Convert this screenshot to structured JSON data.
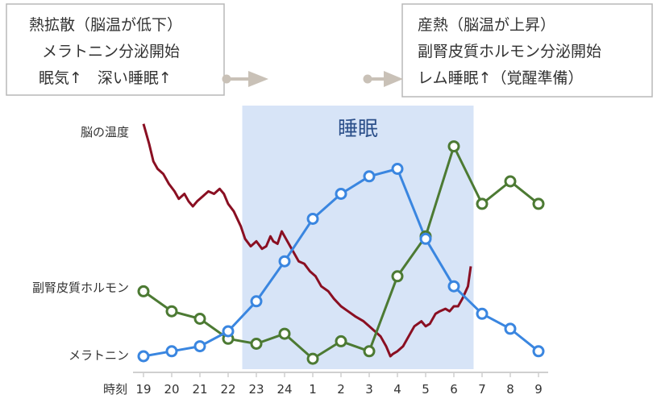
{
  "chart_data": {
    "type": "line",
    "xlabel": "時刻",
    "categories": [
      "19",
      "20",
      "21",
      "22",
      "23",
      "24",
      "1",
      "2",
      "3",
      "4",
      "5",
      "6",
      "7",
      "8",
      "9"
    ],
    "band": {
      "label": "睡眠",
      "from": "22.5",
      "to": "6.7"
    },
    "series": [
      {
        "name": "メラトニン",
        "color": "#3a86e0",
        "values": [
          0.0,
          0.02,
          0.04,
          0.1,
          0.22,
          0.38,
          0.55,
          0.65,
          0.72,
          0.75,
          0.47,
          0.28,
          0.17,
          0.11,
          0.02
        ]
      },
      {
        "name": "副腎皮質ホルモン",
        "color": "#4c7a33",
        "values": [
          0.26,
          0.18,
          0.15,
          0.07,
          0.05,
          0.09,
          -0.01,
          0.06,
          0.02,
          0.32,
          0.48,
          0.84,
          0.61,
          0.7,
          0.61
        ]
      },
      {
        "name": "脳の温度",
        "color": "#8a0f22",
        "values": [
          [
            19.0,
            0.93
          ],
          [
            19.2,
            0.85
          ],
          [
            19.35,
            0.78
          ],
          [
            19.5,
            0.75
          ],
          [
            19.7,
            0.73
          ],
          [
            19.9,
            0.69
          ],
          [
            20.1,
            0.66
          ],
          [
            20.25,
            0.63
          ],
          [
            20.45,
            0.65
          ],
          [
            20.6,
            0.62
          ],
          [
            20.75,
            0.6
          ],
          [
            20.9,
            0.62
          ],
          [
            21.1,
            0.64
          ],
          [
            21.3,
            0.66
          ],
          [
            21.5,
            0.65
          ],
          [
            21.7,
            0.67
          ],
          [
            21.85,
            0.65
          ],
          [
            22.0,
            0.61
          ],
          [
            22.2,
            0.58
          ],
          [
            22.45,
            0.52
          ],
          [
            22.6,
            0.47
          ],
          [
            22.8,
            0.44
          ],
          [
            23.0,
            0.46
          ],
          [
            23.2,
            0.43
          ],
          [
            23.35,
            0.44
          ],
          [
            23.5,
            0.48
          ],
          [
            23.6,
            0.46
          ],
          [
            23.75,
            0.45
          ],
          [
            23.9,
            0.5
          ],
          [
            24.05,
            0.47
          ],
          [
            24.2,
            0.44
          ],
          [
            24.35,
            0.41
          ],
          [
            24.5,
            0.38
          ],
          [
            24.7,
            0.37
          ],
          [
            24.9,
            0.34
          ],
          [
            25.1,
            0.32
          ],
          [
            25.3,
            0.28
          ],
          [
            25.55,
            0.26
          ],
          [
            25.75,
            0.23
          ],
          [
            26.0,
            0.2
          ],
          [
            26.25,
            0.18
          ],
          [
            26.5,
            0.16
          ],
          [
            26.8,
            0.14
          ],
          [
            27.0,
            0.12
          ],
          [
            27.2,
            0.1
          ],
          [
            27.4,
            0.08
          ],
          [
            27.6,
            0.04
          ],
          [
            27.75,
            0.0
          ],
          [
            27.85,
            0.01
          ],
          [
            28.0,
            0.02
          ],
          [
            28.2,
            0.04
          ],
          [
            28.4,
            0.08
          ],
          [
            28.6,
            0.12
          ],
          [
            28.85,
            0.14
          ],
          [
            29.0,
            0.12
          ],
          [
            29.15,
            0.13
          ],
          [
            29.35,
            0.17
          ],
          [
            29.5,
            0.18
          ],
          [
            29.7,
            0.19
          ],
          [
            29.85,
            0.18
          ],
          [
            30.0,
            0.2
          ],
          [
            30.15,
            0.2
          ],
          [
            30.3,
            0.23
          ],
          [
            30.5,
            0.28
          ],
          [
            30.6,
            0.36
          ]
        ]
      }
    ],
    "labels_left": [
      "脳の温度",
      "副腎皮質ホルモン",
      "メラトニン"
    ]
  },
  "left_box": {
    "lines": [
      "熱拡散（脳温が低下）",
      "メラトニン分泌開始",
      "眠気↑　深い睡眠↑"
    ]
  },
  "right_box": {
    "lines": [
      "産熱（脳温が上昇）",
      "副腎皮質ホルモン分泌開始",
      "レム睡眠↑（覚醒準備）"
    ]
  }
}
